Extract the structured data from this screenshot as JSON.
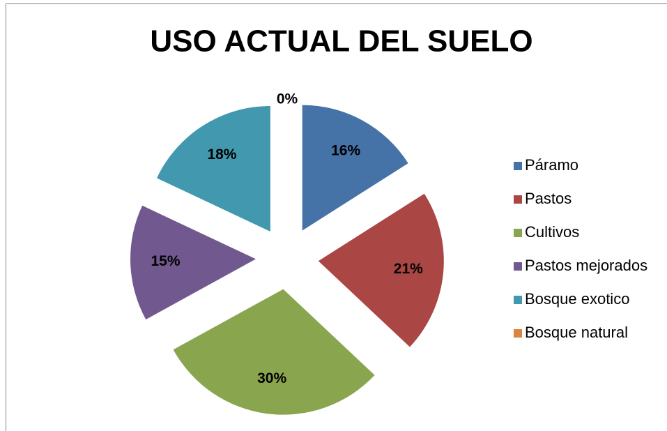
{
  "chart_data": {
    "type": "pie",
    "title": "USO ACTUAL DEL SUELO",
    "categories": [
      "Páramo",
      "Pastos",
      "Cultivos",
      "Pastos mejorados",
      "Bosque exotico",
      "Bosque natural"
    ],
    "values": [
      16,
      21,
      30,
      15,
      18,
      0
    ],
    "value_labels": [
      "16%",
      "21%",
      "30%",
      "15%",
      "18%",
      "0%"
    ],
    "colors": [
      "#4572a7",
      "#aa4643",
      "#89a54e",
      "#71588f",
      "#4198af",
      "#db843d"
    ],
    "exploded": true,
    "legend": "right"
  }
}
